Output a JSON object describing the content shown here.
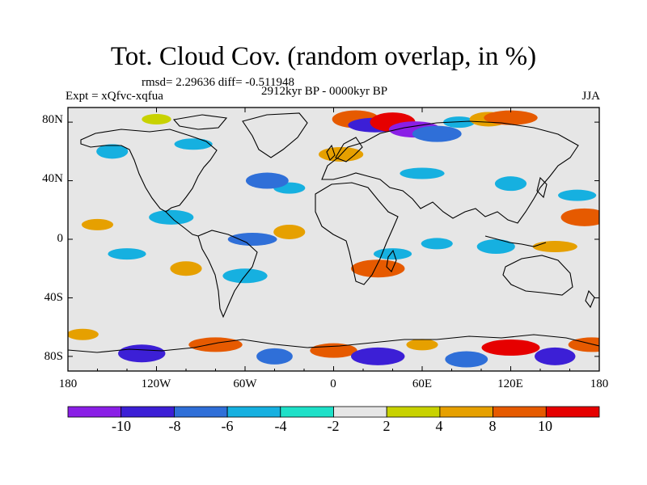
{
  "title": "Tot. Cloud Cov. (random overlap, in %)",
  "stats": "rmsd= 2.29636 diff= -0.511948",
  "period": "2912kyr BP - 0000kyr BP",
  "experiment": "Expt = xQfvc-xqfua",
  "season": "JJA",
  "colors": {
    "background_land_ocean": "#e6e6e6",
    "levels": [
      "#8a1fe6",
      "#3c1fd6",
      "#2f6fd8",
      "#16b0e0",
      "#1ee0c8",
      "#e6e6e6",
      "#c8d200",
      "#e6a000",
      "#e65a00",
      "#e60000"
    ]
  },
  "chart_data": {
    "type": "heatmap",
    "projection": "cylindrical equidistant",
    "x_range": [
      -180,
      180
    ],
    "y_range": [
      -90,
      90
    ],
    "x_ticks": [
      "180",
      "120W",
      "60W",
      "0",
      "60E",
      "120E",
      "180"
    ],
    "y_ticks": [
      "80N",
      "40N",
      "0",
      "40S",
      "80S"
    ],
    "colorbar_labels": [
      "-10",
      "-8",
      "-6",
      "-4",
      "-2",
      "2",
      "4",
      "8",
      "10"
    ],
    "anomaly_regions": [
      {
        "lon": -120,
        "lat": 82,
        "value": 3
      },
      {
        "lon": 15,
        "lat": 82,
        "value": 8
      },
      {
        "lon": 28,
        "lat": 78,
        "value": -8
      },
      {
        "lon": 40,
        "lat": 80,
        "value": 10
      },
      {
        "lon": 55,
        "lat": 75,
        "value": -10
      },
      {
        "lon": 70,
        "lat": 72,
        "value": -6
      },
      {
        "lon": 85,
        "lat": 80,
        "value": -4
      },
      {
        "lon": 105,
        "lat": 82,
        "value": 4
      },
      {
        "lon": 120,
        "lat": 83,
        "value": 8
      },
      {
        "lon": -150,
        "lat": 60,
        "value": -4
      },
      {
        "lon": -95,
        "lat": 65,
        "value": -4
      },
      {
        "lon": 5,
        "lat": 58,
        "value": 4
      },
      {
        "lon": -30,
        "lat": 35,
        "value": -4
      },
      {
        "lon": -45,
        "lat": 40,
        "value": -6
      },
      {
        "lon": 60,
        "lat": 45,
        "value": -4
      },
      {
        "lon": 120,
        "lat": 38,
        "value": -4
      },
      {
        "lon": 165,
        "lat": 30,
        "value": -4
      },
      {
        "lon": -110,
        "lat": 15,
        "value": -4
      },
      {
        "lon": -160,
        "lat": 10,
        "value": 4
      },
      {
        "lon": 170,
        "lat": 15,
        "value": 8
      },
      {
        "lon": -55,
        "lat": 0,
        "value": -6
      },
      {
        "lon": -30,
        "lat": 5,
        "value": 4
      },
      {
        "lon": 40,
        "lat": -10,
        "value": -4
      },
      {
        "lon": 30,
        "lat": -20,
        "value": 8
      },
      {
        "lon": 70,
        "lat": -3,
        "value": -4
      },
      {
        "lon": 110,
        "lat": -5,
        "value": -4
      },
      {
        "lon": 150,
        "lat": -5,
        "value": 4
      },
      {
        "lon": -100,
        "lat": -20,
        "value": 4
      },
      {
        "lon": -140,
        "lat": -10,
        "value": -4
      },
      {
        "lon": -60,
        "lat": -25,
        "value": -4
      },
      {
        "lon": -170,
        "lat": -65,
        "value": 4
      },
      {
        "lon": -130,
        "lat": -78,
        "value": -8
      },
      {
        "lon": -80,
        "lat": -72,
        "value": 8
      },
      {
        "lon": -40,
        "lat": -80,
        "value": -6
      },
      {
        "lon": 0,
        "lat": -76,
        "value": 8
      },
      {
        "lon": 30,
        "lat": -80,
        "value": -8
      },
      {
        "lon": 60,
        "lat": -72,
        "value": 4
      },
      {
        "lon": 90,
        "lat": -82,
        "value": -6
      },
      {
        "lon": 120,
        "lat": -74,
        "value": 10
      },
      {
        "lon": 150,
        "lat": -80,
        "value": -8
      },
      {
        "lon": 175,
        "lat": -72,
        "value": 8
      }
    ]
  }
}
